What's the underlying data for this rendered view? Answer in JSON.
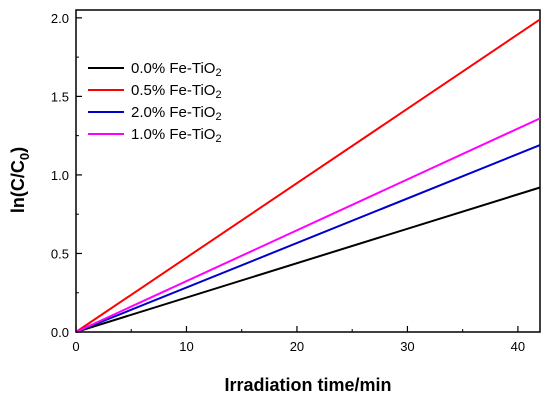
{
  "chart_data": {
    "type": "line",
    "xlabel": "Irradiation time/min",
    "ylabel": "ln(C/C",
    "ylabel_sub": "0",
    "ylabel_end": ")",
    "xlim": [
      0,
      42
    ],
    "ylim": [
      0,
      2.05
    ],
    "x_ticks": [
      0,
      10,
      20,
      30,
      40
    ],
    "x_tick_labels": [
      "0",
      "10",
      "20",
      "30",
      "40"
    ],
    "y_ticks": [
      0.0,
      0.5,
      1.0,
      1.5,
      2.0
    ],
    "y_tick_labels": [
      "0.0",
      "0.5",
      "1.0",
      "1.5",
      "2.0"
    ],
    "grid": false,
    "legend_position": "top-left",
    "series": [
      {
        "name": "0.0% Fe-TiO",
        "name_sub": "2",
        "color": "#000000",
        "x": [
          0,
          42
        ],
        "y": [
          0,
          0.92
        ]
      },
      {
        "name": "0.5% Fe-TiO",
        "name_sub": "2",
        "color": "#ff0000",
        "x": [
          0,
          42
        ],
        "y": [
          0,
          1.99
        ]
      },
      {
        "name": "2.0% Fe-TiO",
        "name_sub": "2",
        "color": "#0000cc",
        "x": [
          0,
          42
        ],
        "y": [
          0,
          1.19
        ]
      },
      {
        "name": "1.0% Fe-TiO",
        "name_sub": "2",
        "color": "#ff00ff",
        "x": [
          0,
          42
        ],
        "y": [
          0,
          1.36
        ]
      }
    ]
  }
}
